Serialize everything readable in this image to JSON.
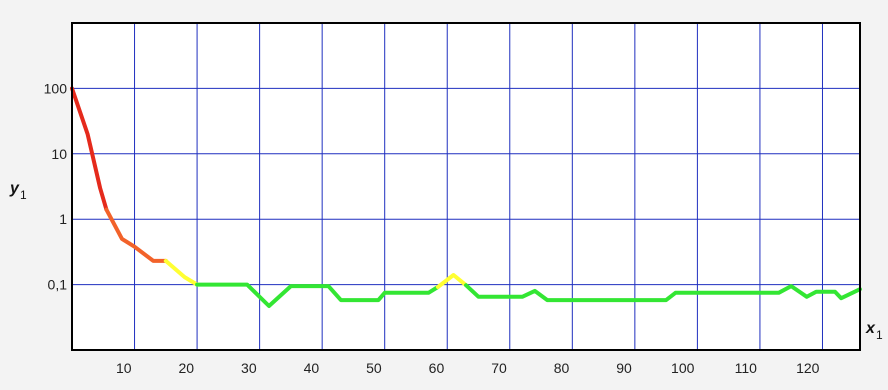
{
  "chart_data": {
    "type": "line",
    "title": "",
    "xlabel": {
      "main": "x",
      "sub": "1"
    },
    "ylabel": {
      "main": "y",
      "sub": "1"
    },
    "xlim": [
      0,
      126
    ],
    "ylim": [
      0.01,
      1000
    ],
    "y_scale": "log",
    "grid": true,
    "x_ticks": [
      10,
      20,
      30,
      40,
      50,
      60,
      70,
      80,
      90,
      100,
      110,
      120
    ],
    "x_tick_labels": [
      "10",
      "20",
      "30",
      "40",
      "50",
      "60",
      "70",
      "80",
      "90",
      "100",
      "110",
      "120"
    ],
    "y_ticks": [
      0.1,
      1,
      10,
      100
    ],
    "y_tick_labels": [
      "0,1",
      "1",
      "10",
      "100"
    ],
    "colors": {
      "grid": "#1f2fbf",
      "frame": "#000000",
      "background": "#ffffff",
      "red": "#e52a1c",
      "orange": "#f2622a",
      "yellow": "#ffff33",
      "green": "#33e633"
    },
    "segments": [
      {
        "color": "red",
        "points": [
          [
            0,
            100
          ],
          [
            2.5,
            20
          ],
          [
            4.5,
            3
          ],
          [
            5.5,
            1.4
          ]
        ]
      },
      {
        "color": "orange",
        "points": [
          [
            5.5,
            1.4
          ],
          [
            8,
            0.5
          ],
          [
            10,
            0.38
          ],
          [
            13,
            0.23
          ],
          [
            15,
            0.23
          ]
        ]
      },
      {
        "color": "yellow",
        "points": [
          [
            15,
            0.23
          ],
          [
            18,
            0.13
          ],
          [
            20,
            0.1
          ]
        ]
      },
      {
        "color": "green",
        "points": [
          [
            20,
            0.1
          ],
          [
            28,
            0.1
          ],
          [
            31.5,
            0.047
          ],
          [
            35,
            0.095
          ],
          [
            41,
            0.095
          ],
          [
            43,
            0.058
          ],
          [
            49,
            0.058
          ],
          [
            50,
            0.075
          ],
          [
            57,
            0.075
          ],
          [
            58.5,
            0.092
          ]
        ]
      },
      {
        "color": "yellow",
        "points": [
          [
            58.5,
            0.092
          ],
          [
            61,
            0.14
          ],
          [
            63,
            0.098
          ]
        ]
      },
      {
        "color": "green",
        "points": [
          [
            63,
            0.098
          ],
          [
            65,
            0.065
          ],
          [
            72,
            0.065
          ],
          [
            74,
            0.08
          ],
          [
            76,
            0.058
          ],
          [
            95,
            0.058
          ],
          [
            96.5,
            0.075
          ],
          [
            113,
            0.075
          ],
          [
            115,
            0.095
          ],
          [
            117.5,
            0.065
          ],
          [
            119,
            0.078
          ],
          [
            122,
            0.078
          ],
          [
            123,
            0.062
          ],
          [
            126,
            0.085
          ]
        ]
      }
    ]
  }
}
